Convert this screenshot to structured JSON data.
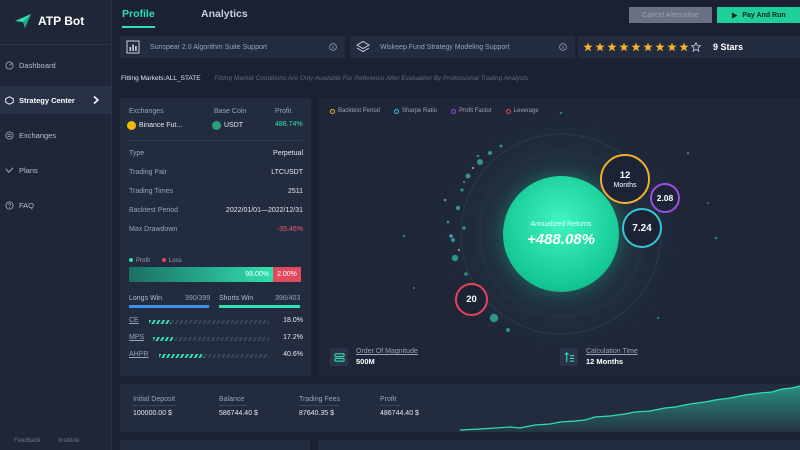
{
  "app": {
    "name": "ATP Bot"
  },
  "sidebar": {
    "items": [
      {
        "label": "Dashboard",
        "icon": "dashboard-icon"
      },
      {
        "label": "Strategy Center",
        "icon": "strategy-icon"
      },
      {
        "label": "Exchanges",
        "icon": "exchange-icon"
      },
      {
        "label": "Plans",
        "icon": "plans-icon"
      },
      {
        "label": "FAQ",
        "icon": "faq-icon"
      }
    ],
    "active_index": 1,
    "bottom": [
      "Feedback",
      "Institute"
    ]
  },
  "header": {
    "tabs": [
      {
        "label": "Profile"
      },
      {
        "label": "Analytics"
      }
    ],
    "active_tab": "Profile",
    "cancel_label": "Cancel Alternative",
    "pay_label": "Pay And Run"
  },
  "strategies": {
    "card1": "Sunspear 2.0 Algorithm Suite Support",
    "card2": "Wiskeep Fund Strategy Modeling Support",
    "rating": 9,
    "rating_max": 10,
    "rating_label": "9 Stars"
  },
  "fitting": {
    "label": "Fitting Markets:ALL_STATE",
    "note": "Fitting Market Conditions Are Only Available For Reference After Evaluation By Professional Trading Analysts"
  },
  "summary": {
    "exchanges_head": "Exchanges",
    "base_coin_head": "Base Coin",
    "profit_head": "Profit",
    "exchange": "Binance Fut...",
    "base_coin": "USDT",
    "profit": "486.74%",
    "rows": [
      {
        "k": "Type",
        "v": "Perpetual"
      },
      {
        "k": "Trading Pair",
        "v": "LTCUSDT"
      },
      {
        "k": "Trading Times",
        "v": "2511"
      },
      {
        "k": "Backtest Period",
        "v": "2022/01/01—2022/12/31"
      },
      {
        "k": "Max Drawdown",
        "v": "-35.46%"
      }
    ],
    "legend_profit": "Profit",
    "legend_loss": "Loss",
    "profit_pct": "98.00%",
    "loss_pct": "2.00%",
    "profit_ratio": 0.98,
    "longs_label": "Longs Win",
    "longs_value": "390/399",
    "longs_ratio": 0.977,
    "shorts_label": "Shorts Win",
    "shorts_value": "396/403",
    "shorts_ratio": 0.983,
    "metrics": [
      {
        "name": "CE",
        "value": "18.0%",
        "ratio": 0.18
      },
      {
        "name": "MPS",
        "value": "17.2%",
        "ratio": 0.172
      },
      {
        "name": "AHPR",
        "value": "40.6%",
        "ratio": 0.406
      }
    ]
  },
  "viz": {
    "legend": [
      {
        "label": "Backtest Period",
        "color": "#f1b02e"
      },
      {
        "label": "Sharpe Ratio",
        "color": "#33c6d8"
      },
      {
        "label": "Profit Factor",
        "color": "#9a4ee8"
      },
      {
        "label": "Leverage",
        "color": "#e9435a"
      }
    ],
    "annualized_label": "Annualized Returns",
    "annualized_value": "+488.08%",
    "period_value": "12",
    "period_unit": "Months",
    "profit_factor": "2.08",
    "sharpe": "7.24",
    "leverage": "20",
    "magnitude_label": "Order Of Magnitude",
    "magnitude_value": "500M",
    "calc_label": "Calculation Time",
    "calc_value": "12 Months"
  },
  "balance": {
    "initial_label": "Initial Deposit",
    "initial_value": "100000.00 $",
    "balance_label": "Balance",
    "balance_value": "586744.40 $",
    "fees_label": "Trading Fees",
    "fees_value": "87640.35 $",
    "profit_label": "Profit",
    "profit_value": "486744.40 $"
  },
  "colors": {
    "accent": "#2fe0b0",
    "loss": "#e04a5c",
    "bg": "#1b2132"
  }
}
